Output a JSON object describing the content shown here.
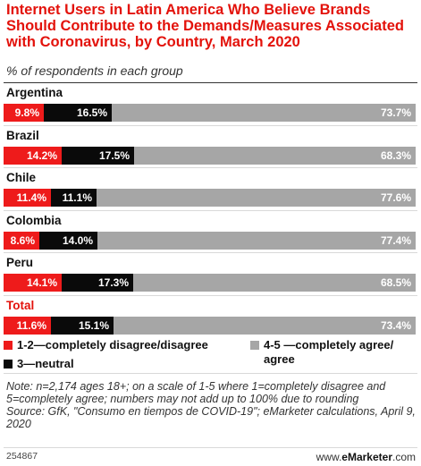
{
  "chart_data": {
    "type": "bar",
    "stacked": true,
    "orientation": "horizontal",
    "title": "Internet Users in Latin America Who Believe Brands Should Contribute to the Demands/Measures Associated with Coronavirus, by Country, March 2020",
    "subtitle": "% of respondents in each group",
    "categories": [
      "Argentina",
      "Brazil",
      "Chile",
      "Colombia",
      "Peru",
      "Total"
    ],
    "series": [
      {
        "name": "1-2—completely disagree/disagree",
        "color": "#ee1b1b",
        "values": [
          9.8,
          14.2,
          11.4,
          8.6,
          14.1,
          11.6
        ],
        "labels": [
          "9.8%",
          "14.2%",
          "11.4%",
          "8.6%",
          "14.1%",
          "11.6%"
        ]
      },
      {
        "name": "3—neutral",
        "color": "#0a0a0a",
        "values": [
          16.5,
          17.5,
          11.1,
          14.0,
          17.3,
          15.1
        ],
        "labels": [
          "16.5%",
          "17.5%",
          "11.1%",
          "14.0%",
          "17.3%",
          "15.1%"
        ]
      },
      {
        "name": "4-5 —completely agree/ agree",
        "color": "#a6a6a6",
        "values": [
          73.7,
          68.3,
          77.6,
          77.4,
          68.5,
          73.4
        ],
        "labels": [
          "73.7%",
          "68.3%",
          "77.6%",
          "77.4%",
          "68.5%",
          "73.4%"
        ]
      }
    ],
    "legend": [
      "1-2—completely disagree/disagree",
      "3—neutral",
      "4-5 —completely agree/ agree"
    ],
    "legend_position": "bottom",
    "note": "Note: n=2,174 ages 18+; on a scale of 1-5 where 1=completely disagree and 5=completely agree; numbers may not add up to 100% due to rounding",
    "source": "Source: GfK, \"Consumo en tiempos de COVID-19\"; eMarketer calculations, April 9, 2020"
  },
  "footer": {
    "id": "254867",
    "brand_prefix": "www.",
    "brand_name": "eMarketer",
    "brand_suffix": ".com"
  }
}
